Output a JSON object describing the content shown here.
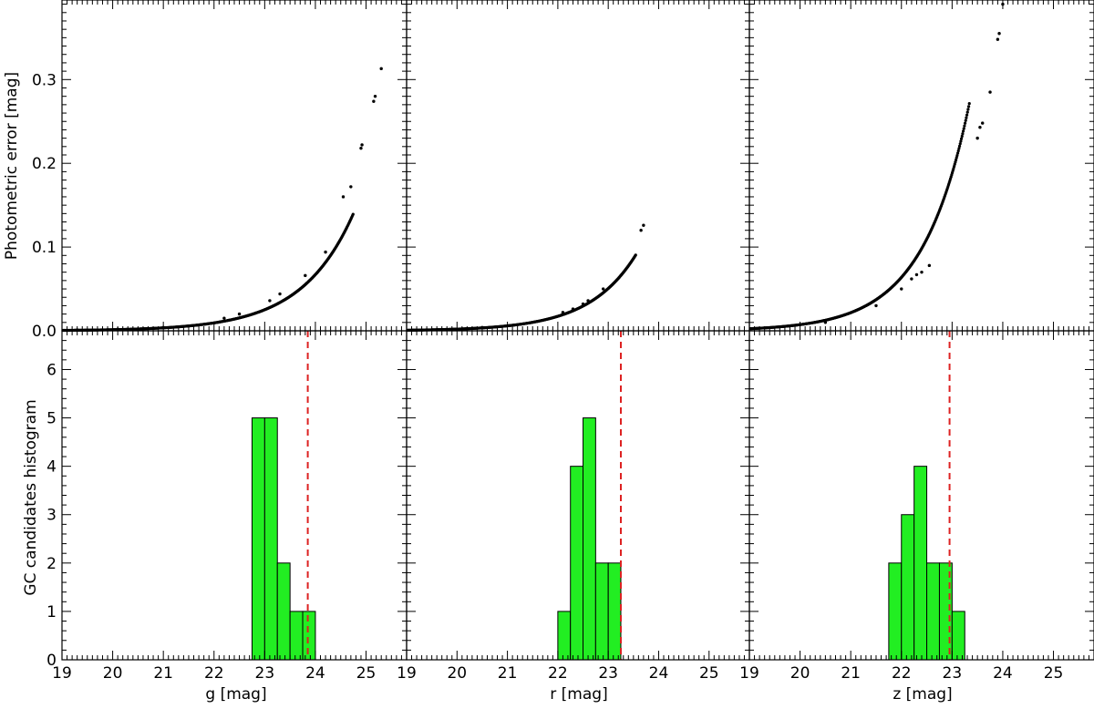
{
  "chart_data": [
    {
      "type": "scatter",
      "panel": "top-left",
      "xlabel": "",
      "ylabel": "Photometric error [mag]",
      "xlim": [
        19,
        25.8
      ],
      "ylim": [
        0,
        0.395
      ],
      "xticks": [
        19,
        20,
        21,
        22,
        23,
        24,
        25
      ],
      "yticks": [
        0.0,
        0.1,
        0.2,
        0.3
      ],
      "ytick_labels": [
        "0.0",
        "0.1",
        "0.2",
        "0.3"
      ],
      "color": "#000000",
      "curve": {
        "a": 0.0005,
        "mag0": 19.0,
        "b": 0.98,
        "x_end": 24.75
      },
      "points": [
        [
          19.3,
          0.001
        ],
        [
          20.1,
          0.002
        ],
        [
          21.0,
          0.004
        ],
        [
          22.2,
          0.015
        ],
        [
          22.5,
          0.02
        ],
        [
          23.1,
          0.036
        ],
        [
          23.3,
          0.044
        ],
        [
          23.8,
          0.066
        ],
        [
          24.2,
          0.094
        ],
        [
          24.55,
          0.16
        ],
        [
          24.7,
          0.172
        ],
        [
          24.9,
          0.218
        ],
        [
          24.92,
          0.222
        ],
        [
          25.15,
          0.274
        ],
        [
          25.18,
          0.28
        ],
        [
          25.3,
          0.313
        ]
      ]
    },
    {
      "type": "scatter",
      "panel": "top-middle",
      "xlabel": "",
      "ylabel": "",
      "xlim": [
        19,
        25.8
      ],
      "ylim": [
        0,
        0.395
      ],
      "xticks": [
        19,
        20,
        21,
        22,
        23,
        24,
        25
      ],
      "color": "#000000",
      "curve": {
        "a": 0.0007,
        "mag0": 19.0,
        "b": 1.07,
        "x_end": 23.55
      },
      "points": [
        [
          20.5,
          0.004
        ],
        [
          22.1,
          0.022
        ],
        [
          22.3,
          0.026
        ],
        [
          22.5,
          0.032
        ],
        [
          22.6,
          0.036
        ],
        [
          22.9,
          0.05
        ],
        [
          23.65,
          0.12
        ],
        [
          23.7,
          0.126
        ]
      ]
    },
    {
      "type": "scatter",
      "panel": "top-right",
      "xlabel": "",
      "ylabel": "",
      "xlim": [
        19,
        25.8
      ],
      "ylim": [
        0,
        0.395
      ],
      "xticks": [
        19,
        20,
        21,
        22,
        23,
        24,
        25
      ],
      "color": "#000000",
      "curve": {
        "a": 0.0025,
        "mag0": 19.0,
        "b": 1.08,
        "x_end": 23.35
      },
      "points": [
        [
          20.5,
          0.01
        ],
        [
          21.5,
          0.03
        ],
        [
          22.0,
          0.05
        ],
        [
          22.2,
          0.062
        ],
        [
          22.3,
          0.067
        ],
        [
          22.4,
          0.07
        ],
        [
          22.55,
          0.078
        ],
        [
          23.5,
          0.23
        ],
        [
          23.55,
          0.243
        ],
        [
          23.6,
          0.248
        ],
        [
          23.75,
          0.285
        ],
        [
          23.9,
          0.348
        ],
        [
          23.93,
          0.355
        ],
        [
          24.0,
          0.39
        ]
      ]
    },
    {
      "type": "bar",
      "panel": "bottom-left",
      "xlabel": "g [mag]",
      "ylabel": "GC candidates histogram",
      "xlim": [
        19,
        25.8
      ],
      "ylim": [
        0,
        6.8
      ],
      "xticks": [
        19,
        20,
        21,
        22,
        23,
        24,
        25
      ],
      "yticks": [
        0,
        1,
        2,
        3,
        4,
        5,
        6
      ],
      "bin_width": 0.25,
      "bin_starts": [
        22.75,
        23.0,
        23.25,
        23.5,
        23.75
      ],
      "values": [
        5,
        5,
        2,
        1,
        1
      ],
      "bar_color": "#22ee22",
      "cutoff": 23.85,
      "cutoff_color": "#dd2222"
    },
    {
      "type": "bar",
      "panel": "bottom-middle",
      "xlabel": "r [mag]",
      "ylabel": "",
      "xlim": [
        19,
        25.8
      ],
      "ylim": [
        0,
        6.8
      ],
      "xticks": [
        19,
        20,
        21,
        22,
        23,
        24,
        25
      ],
      "bin_width": 0.25,
      "bin_starts": [
        22.0,
        22.25,
        22.5,
        22.75,
        23.0
      ],
      "values": [
        1,
        4,
        5,
        2,
        2
      ],
      "bar_color": "#22ee22",
      "cutoff": 23.25,
      "cutoff_color": "#dd2222"
    },
    {
      "type": "bar",
      "panel": "bottom-right",
      "xlabel": "z [mag]",
      "ylabel": "",
      "xlim": [
        19,
        25.8
      ],
      "ylim": [
        0,
        6.8
      ],
      "xticks": [
        19,
        20,
        21,
        22,
        23,
        24,
        25
      ],
      "bin_width": 0.25,
      "bin_starts": [
        21.75,
        22.0,
        22.25,
        22.5,
        22.75,
        23.0
      ],
      "values": [
        2,
        3,
        4,
        2,
        2,
        1
      ],
      "bar_color": "#22ee22",
      "cutoff": 22.95,
      "cutoff_color": "#dd2222"
    }
  ]
}
